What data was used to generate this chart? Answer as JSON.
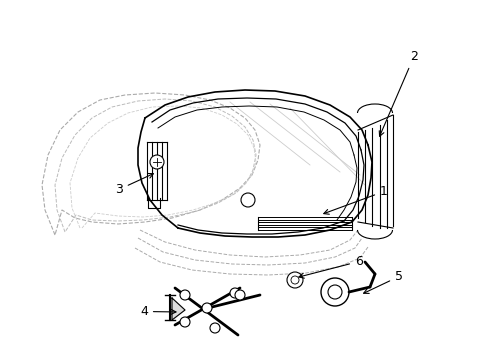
{
  "background_color": "#ffffff",
  "fig_width": 4.89,
  "fig_height": 3.6,
  "dpi": 100,
  "line_color": "#000000",
  "dashed_color": "#888888"
}
